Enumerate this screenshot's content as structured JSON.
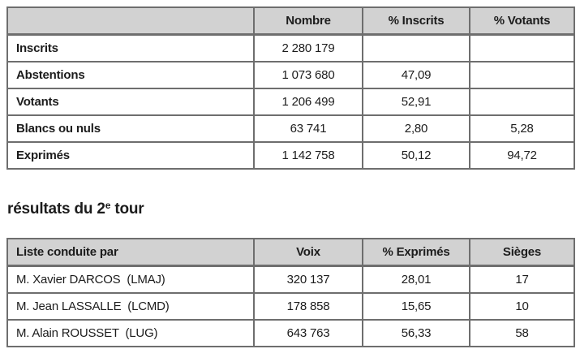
{
  "colors": {
    "header_bg": "#d2d2d2",
    "inner_border": "#6e6e6e",
    "outer_border": "#2e2e2e",
    "text": "#1c1c1c"
  },
  "turnout_table": {
    "columns": [
      "",
      "Nombre",
      "% Inscrits",
      "% Votants"
    ],
    "rows": [
      [
        "Inscrits",
        "2 280 179",
        "",
        ""
      ],
      [
        "Abstentions",
        "1 073 680",
        "47,09",
        ""
      ],
      [
        "Votants",
        "1 206 499",
        "52,91",
        ""
      ],
      [
        "Blancs ou nuls",
        "63 741",
        "2,80",
        "5,28"
      ],
      [
        "Exprimés",
        "1 142 758",
        "50,12",
        "94,72"
      ]
    ]
  },
  "heading": {
    "prefix": "résultats du 2",
    "superscript": "e",
    "suffix": " tour"
  },
  "results_table": {
    "columns": [
      "Liste conduite par",
      "Voix",
      "% Exprimés",
      "Sièges"
    ],
    "rows": [
      [
        "M. Xavier DARCOS  (LMAJ)",
        "320 137",
        "28,01",
        "17"
      ],
      [
        "M. Jean LASSALLE  (LCMD)",
        "178 858",
        "15,65",
        "10"
      ],
      [
        "M. Alain ROUSSET  (LUG)",
        "643 763",
        "56,33",
        "58"
      ]
    ]
  }
}
